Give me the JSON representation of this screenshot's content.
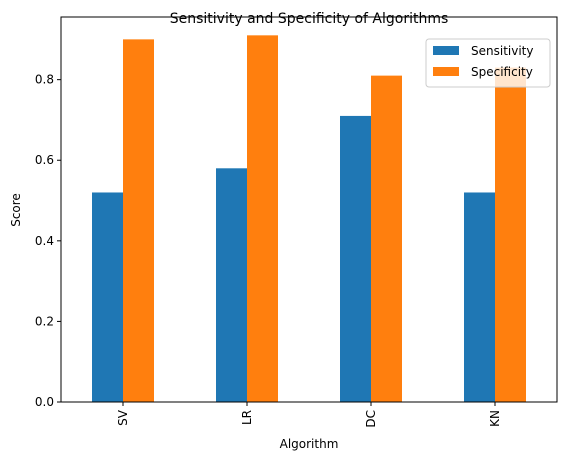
{
  "chart_data": {
    "type": "bar",
    "title": "Sensitivity and Specificity of Algorithms",
    "xlabel": "Algorithm",
    "ylabel": "Score",
    "categories": [
      "SV",
      "LR",
      "DC",
      "KN"
    ],
    "series": [
      {
        "name": "Sensitivity",
        "values": [
          0.52,
          0.58,
          0.71,
          0.52
        ],
        "color": "#1f77b4"
      },
      {
        "name": "Specificity",
        "values": [
          0.9,
          0.91,
          0.81,
          0.83
        ],
        "color": "#ff7f0e"
      }
    ],
    "ylim": [
      0,
      0.9555
    ],
    "yticks": [
      "0.0",
      "0.2",
      "0.4",
      "0.6",
      "0.8"
    ],
    "legend": "top-right",
    "grid": false
  }
}
